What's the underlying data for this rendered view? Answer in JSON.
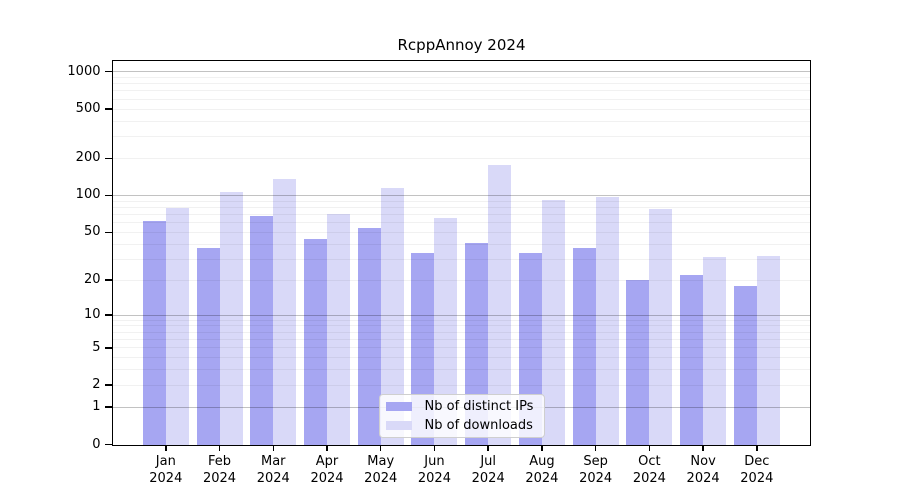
{
  "title": "RcppAnnoy 2024",
  "chart_data": {
    "type": "bar",
    "title": "RcppAnnoy 2024",
    "categories": [
      "Jan 2024",
      "Feb 2024",
      "Mar 2024",
      "Apr 2024",
      "May 2024",
      "Jun 2024",
      "Jul 2024",
      "Aug 2024",
      "Sep 2024",
      "Oct 2024",
      "Nov 2024",
      "Dec 2024"
    ],
    "x_tick_months": [
      "Jan",
      "Feb",
      "Mar",
      "Apr",
      "May",
      "Jun",
      "Jul",
      "Aug",
      "Sep",
      "Oct",
      "Nov",
      "Dec"
    ],
    "x_tick_year": "2024",
    "series": [
      {
        "name": "Nb of distinct IPs",
        "color": "#a6a6f2",
        "values": [
          62,
          37,
          68,
          44,
          54,
          34,
          41,
          34,
          37,
          20,
          22,
          18
        ]
      },
      {
        "name": "Nb of downloads",
        "color": "#d9d9f8",
        "values": [
          79,
          107,
          136,
          71,
          114,
          66,
          175,
          92,
          97,
          78,
          31,
          32
        ]
      }
    ],
    "y_axis": {
      "scale": "log1p",
      "tick_values": [
        1000,
        500,
        200,
        100,
        50,
        20,
        10,
        5,
        2,
        1,
        0
      ],
      "major_gridlines": [
        1,
        10,
        100,
        1000
      ],
      "top_value": 1230
    },
    "xlabel": "",
    "ylabel": "",
    "grid": true,
    "legend_position": "inside-bottom-center"
  }
}
